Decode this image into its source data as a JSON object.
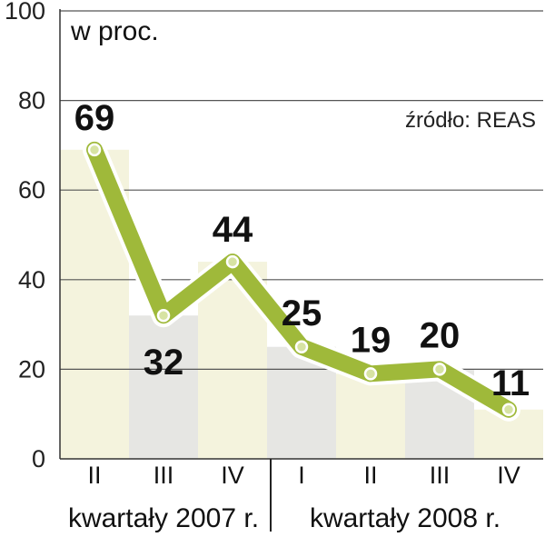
{
  "chart_data": {
    "type": "line",
    "unit_label": "w proc.",
    "source": "źródło: REAS",
    "categories": [
      "II",
      "III",
      "IV",
      "I",
      "II",
      "III",
      "IV"
    ],
    "groups": [
      {
        "label": "kwartały 2007 r.",
        "count": 3
      },
      {
        "label": "kwartały 2008 r.",
        "count": 4
      }
    ],
    "values": [
      69,
      32,
      44,
      25,
      19,
      20,
      11
    ],
    "value_labels": [
      "69",
      "32",
      "44",
      "25",
      "19",
      "20",
      "11"
    ],
    "yticks": [
      "0",
      "20",
      "40",
      "60",
      "80",
      "100"
    ],
    "ylim": [
      0,
      100
    ],
    "grid": true,
    "colors": {
      "line": "#9fb93a",
      "line_outline": "#ffffff",
      "marker_fill": "#d7e3a3",
      "band_a": "#f4f3dd",
      "band_b": "#e6e6e3",
      "grid": "#555555",
      "highlight_label": "#c8102e"
    },
    "highlight_index": 6
  }
}
